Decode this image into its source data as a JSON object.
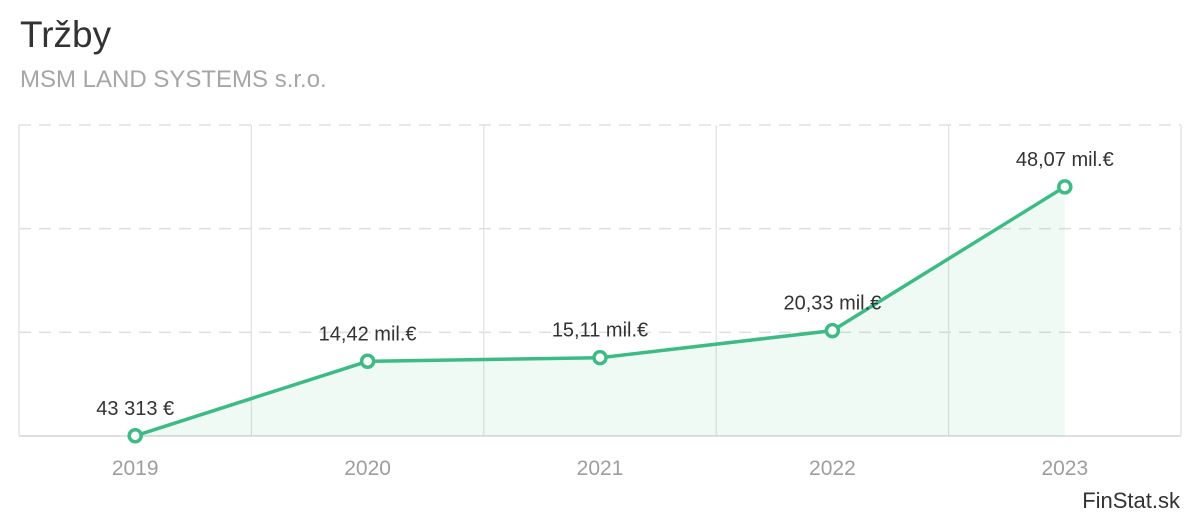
{
  "chart_data": {
    "type": "line",
    "title": "Tržby",
    "subtitle": "MSM LAND SYSTEMS s.r.o.",
    "categories": [
      "2019",
      "2020",
      "2021",
      "2022",
      "2023"
    ],
    "series": [
      {
        "values": [
          0.043313,
          14.42,
          15.11,
          20.33,
          48.07
        ]
      }
    ],
    "data_labels": [
      "43 313 €",
      "14,42 mil.€",
      "15,11 mil.€",
      "20,33 mil.€",
      "48,07 mil.€"
    ],
    "ylim": [
      0,
      60
    ],
    "grid": true,
    "legend": "none",
    "colors": {
      "line": "#3dbb85",
      "fill": "#3dbb85",
      "grid": "#e0e0e0"
    }
  },
  "footer": {
    "brand": "FinStat.sk"
  }
}
